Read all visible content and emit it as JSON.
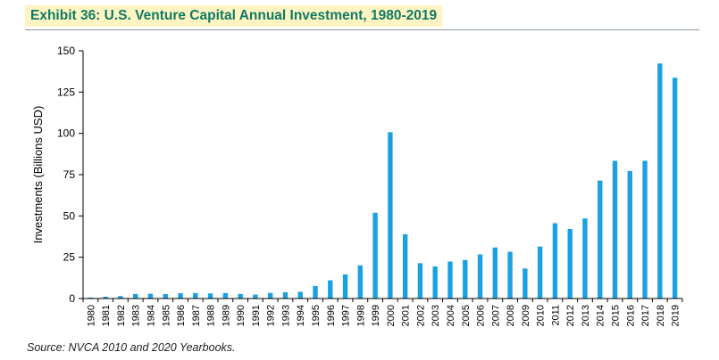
{
  "header": {
    "title": "Exhibit 36: U.S. Venture Capital Annual Investment, 1980-2019"
  },
  "footer": {
    "source": "Source: NVCA 2010 and 2020 Yearbooks."
  },
  "colors": {
    "bar": "#1ba1e2",
    "title": "#0f7a64",
    "title_band": "#fff4c2",
    "axis": "#000000"
  },
  "chart_data": {
    "type": "bar",
    "title": "Exhibit 36: U.S. Venture Capital Annual Investment, 1980-2019",
    "xlabel": "",
    "ylabel": "Investments (Billions USD)",
    "ylim": [
      0,
      150
    ],
    "yticks": [
      0,
      25,
      50,
      75,
      100,
      125,
      150
    ],
    "grid": false,
    "categories": [
      "1980",
      "1981",
      "1982",
      "1983",
      "1984",
      "1985",
      "1986",
      "1987",
      "1988",
      "1989",
      "1990",
      "1991",
      "1992",
      "1993",
      "1994",
      "1995",
      "1996",
      "1997",
      "1998",
      "1999",
      "2000",
      "2001",
      "2002",
      "2003",
      "2004",
      "2005",
      "2006",
      "2007",
      "2008",
      "2009",
      "2010",
      "2011",
      "2012",
      "2013",
      "2014",
      "2015",
      "2016",
      "2017",
      "2018",
      "2019"
    ],
    "series": [
      {
        "name": "Investments (Billions USD)",
        "values": [
          0.6,
          1.1,
          1.5,
          2.8,
          2.9,
          2.7,
          3.2,
          3.3,
          3.1,
          3.3,
          2.8,
          2.4,
          3.4,
          3.8,
          4.1,
          7.6,
          11.0,
          14.6,
          20.1,
          51.9,
          100.7,
          38.9,
          21.4,
          19.4,
          22.4,
          23.3,
          26.7,
          30.9,
          28.3,
          18.2,
          31.5,
          45.6,
          42.1,
          48.5,
          71.4,
          83.4,
          77.2,
          83.4,
          142.3,
          133.7
        ]
      }
    ]
  }
}
